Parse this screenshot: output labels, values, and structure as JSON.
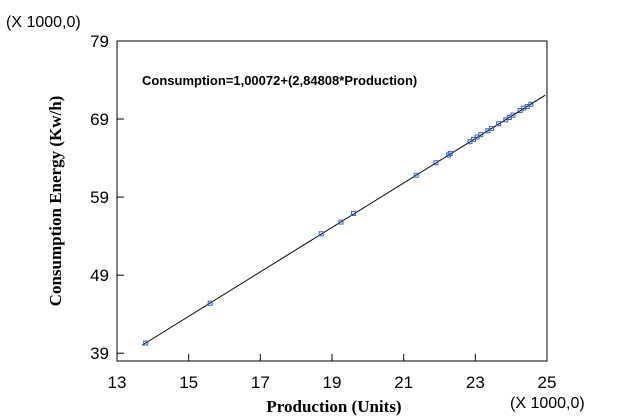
{
  "chart_data": {
    "type": "scatter",
    "xlabel": "Production (Units)",
    "ylabel": "Consumption Energy (Kw/h)",
    "x_scale_label": "(X 1000,0)",
    "y_scale_label": "(X 1000,0)",
    "xlim": [
      13,
      25
    ],
    "ylim": [
      38,
      79
    ],
    "x_ticks": [
      13,
      15,
      17,
      19,
      21,
      23,
      25
    ],
    "y_ticks": [
      39,
      49,
      59,
      69,
      79
    ],
    "annotation": "Consumption=1,00072+(2,84808*Production)",
    "fit_line": {
      "intercept": 1.00072,
      "slope": 2.84808,
      "x_range": [
        13.7,
        24.95
      ]
    },
    "grid": false,
    "point_color": "#3b5fbf",
    "line_color": "#000000",
    "points": [
      {
        "x": 13.8,
        "y": 40.3
      },
      {
        "x": 15.6,
        "y": 45.4
      },
      {
        "x": 18.7,
        "y": 54.3
      },
      {
        "x": 19.25,
        "y": 55.8
      },
      {
        "x": 19.6,
        "y": 56.9
      },
      {
        "x": 21.35,
        "y": 61.8
      },
      {
        "x": 21.9,
        "y": 63.4
      },
      {
        "x": 22.25,
        "y": 64.4
      },
      {
        "x": 22.3,
        "y": 64.6
      },
      {
        "x": 22.85,
        "y": 66.1
      },
      {
        "x": 22.95,
        "y": 66.4
      },
      {
        "x": 23.05,
        "y": 66.7
      },
      {
        "x": 23.15,
        "y": 67.0
      },
      {
        "x": 23.35,
        "y": 67.5
      },
      {
        "x": 23.45,
        "y": 67.8
      },
      {
        "x": 23.65,
        "y": 68.4
      },
      {
        "x": 23.85,
        "y": 68.9
      },
      {
        "x": 23.95,
        "y": 69.2
      },
      {
        "x": 24.05,
        "y": 69.5
      },
      {
        "x": 24.25,
        "y": 70.1
      },
      {
        "x": 24.35,
        "y": 70.4
      },
      {
        "x": 24.45,
        "y": 70.6
      },
      {
        "x": 24.55,
        "y": 70.9
      }
    ]
  }
}
